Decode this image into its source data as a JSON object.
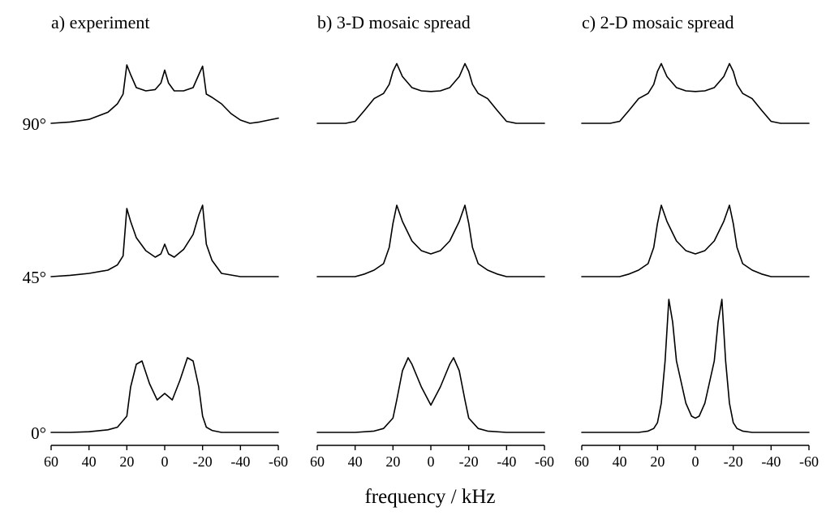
{
  "chart_data": {
    "type": "line",
    "xlabel": "frequency / kHz",
    "xlim": [
      60,
      -60
    ],
    "xticks": [
      60,
      40,
      20,
      0,
      -20,
      -40,
      -60
    ],
    "xtick_labels": [
      "60",
      "40",
      "20",
      "0",
      "-20",
      "-40",
      "-60"
    ],
    "angles": [
      "90°",
      "45°",
      "0°"
    ],
    "panels": [
      {
        "title": "a) experiment",
        "series": [
          {
            "angle": "90°",
            "x": [
              60,
              50,
              40,
              30,
              25,
              22,
              20,
              18,
              15,
              10,
              5,
              2,
              0,
              -2,
              -5,
              -10,
              -15,
              -18,
              -20,
              -22,
              -25,
              -30,
              -35,
              -40,
              -45,
              -50,
              -55,
              -60
            ],
            "y": [
              0,
              0.02,
              0.06,
              0.17,
              0.3,
              0.45,
              0.9,
              0.75,
              0.55,
              0.5,
              0.52,
              0.62,
              0.82,
              0.62,
              0.5,
              0.5,
              0.55,
              0.75,
              0.88,
              0.45,
              0.4,
              0.3,
              0.15,
              0.05,
              0,
              0.02,
              0.05,
              0.08
            ]
          },
          {
            "angle": "45°",
            "x": [
              60,
              50,
              40,
              30,
              25,
              22,
              20,
              18,
              15,
              10,
              5,
              2,
              0,
              -2,
              -5,
              -10,
              -15,
              -18,
              -20,
              -22,
              -25,
              -30,
              -40,
              -50,
              -60
            ],
            "y": [
              0,
              0.02,
              0.05,
              0.1,
              0.18,
              0.32,
              1.05,
              0.85,
              0.6,
              0.4,
              0.3,
              0.35,
              0.5,
              0.35,
              0.3,
              0.42,
              0.65,
              0.95,
              1.1,
              0.5,
              0.25,
              0.05,
              0,
              0,
              0
            ]
          },
          {
            "angle": "0°",
            "x": [
              60,
              50,
              40,
              30,
              25,
              20,
              18,
              15,
              12,
              8,
              4,
              2,
              0,
              -2,
              -4,
              -8,
              -12,
              -15,
              -18,
              -20,
              -22,
              -25,
              -30,
              -40,
              -50,
              -60
            ],
            "y": [
              0,
              0,
              0.01,
              0.04,
              0.08,
              0.25,
              0.7,
              1.05,
              1.1,
              0.75,
              0.5,
              0.55,
              0.6,
              0.55,
              0.5,
              0.8,
              1.15,
              1.1,
              0.7,
              0.25,
              0.08,
              0.03,
              0,
              0,
              0,
              0
            ]
          }
        ]
      },
      {
        "title": "b) 3-D mosaic spread",
        "series": [
          {
            "angle": "90°",
            "x": [
              60,
              45,
              40,
              35,
              30,
              25,
              22,
              20,
              18,
              15,
              10,
              5,
              0,
              -5,
              -10,
              -15,
              -18,
              -20,
              -22,
              -25,
              -30,
              -35,
              -40,
              -45,
              -60
            ],
            "y": [
              0,
              0,
              0.03,
              0.2,
              0.38,
              0.46,
              0.6,
              0.8,
              0.92,
              0.72,
              0.55,
              0.5,
              0.49,
              0.5,
              0.55,
              0.72,
              0.92,
              0.8,
              0.6,
              0.46,
              0.38,
              0.2,
              0.03,
              0,
              0
            ]
          },
          {
            "angle": "45°",
            "x": [
              60,
              40,
              35,
              30,
              25,
              22,
              20,
              18,
              15,
              10,
              5,
              0,
              -5,
              -10,
              -15,
              -18,
              -20,
              -22,
              -25,
              -30,
              -35,
              -40,
              -60
            ],
            "y": [
              0,
              0,
              0.04,
              0.1,
              0.2,
              0.45,
              0.82,
              1.1,
              0.85,
              0.55,
              0.4,
              0.35,
              0.4,
              0.55,
              0.85,
              1.1,
              0.82,
              0.45,
              0.2,
              0.1,
              0.04,
              0,
              0
            ]
          },
          {
            "angle": "0°",
            "x": [
              60,
              40,
              30,
              25,
              20,
              18,
              15,
              12,
              10,
              5,
              0,
              -5,
              -10,
              -12,
              -15,
              -18,
              -20,
              -25,
              -30,
              -40,
              -60
            ],
            "y": [
              0,
              0,
              0.02,
              0.06,
              0.22,
              0.5,
              0.95,
              1.15,
              1.05,
              0.7,
              0.42,
              0.7,
              1.05,
              1.15,
              0.95,
              0.5,
              0.22,
              0.06,
              0.02,
              0,
              0
            ]
          }
        ]
      },
      {
        "title": "c) 2-D mosaic spread",
        "series": [
          {
            "angle": "90°",
            "x": [
              60,
              45,
              40,
              35,
              30,
              25,
              22,
              20,
              18,
              15,
              10,
              5,
              0,
              -5,
              -10,
              -15,
              -18,
              -20,
              -22,
              -25,
              -30,
              -35,
              -40,
              -45,
              -60
            ],
            "y": [
              0,
              0,
              0.03,
              0.2,
              0.38,
              0.46,
              0.6,
              0.8,
              0.92,
              0.72,
              0.55,
              0.5,
              0.49,
              0.5,
              0.55,
              0.72,
              0.92,
              0.8,
              0.6,
              0.46,
              0.38,
              0.2,
              0.03,
              0,
              0
            ]
          },
          {
            "angle": "45°",
            "x": [
              60,
              40,
              35,
              30,
              25,
              22,
              20,
              18,
              15,
              10,
              5,
              0,
              -5,
              -10,
              -15,
              -18,
              -20,
              -22,
              -25,
              -30,
              -35,
              -40,
              -60
            ],
            "y": [
              0,
              0,
              0.04,
              0.1,
              0.2,
              0.45,
              0.82,
              1.1,
              0.85,
              0.55,
              0.4,
              0.35,
              0.4,
              0.55,
              0.85,
              1.1,
              0.82,
              0.45,
              0.2,
              0.1,
              0.04,
              0,
              0
            ]
          },
          {
            "angle": "0°",
            "x": [
              60,
              30,
              25,
              22,
              20,
              18,
              16,
              14,
              12,
              10,
              5,
              2,
              0,
              -2,
              -5,
              -10,
              -12,
              -14,
              -16,
              -18,
              -20,
              -22,
              -25,
              -30,
              -60
            ],
            "y": [
              0,
              0,
              0.02,
              0.06,
              0.15,
              0.45,
              1.1,
              2.05,
              1.7,
              1.1,
              0.45,
              0.25,
              0.22,
              0.25,
              0.45,
              1.1,
              1.7,
              2.05,
              1.1,
              0.45,
              0.15,
              0.06,
              0.02,
              0,
              0
            ]
          }
        ]
      }
    ]
  }
}
